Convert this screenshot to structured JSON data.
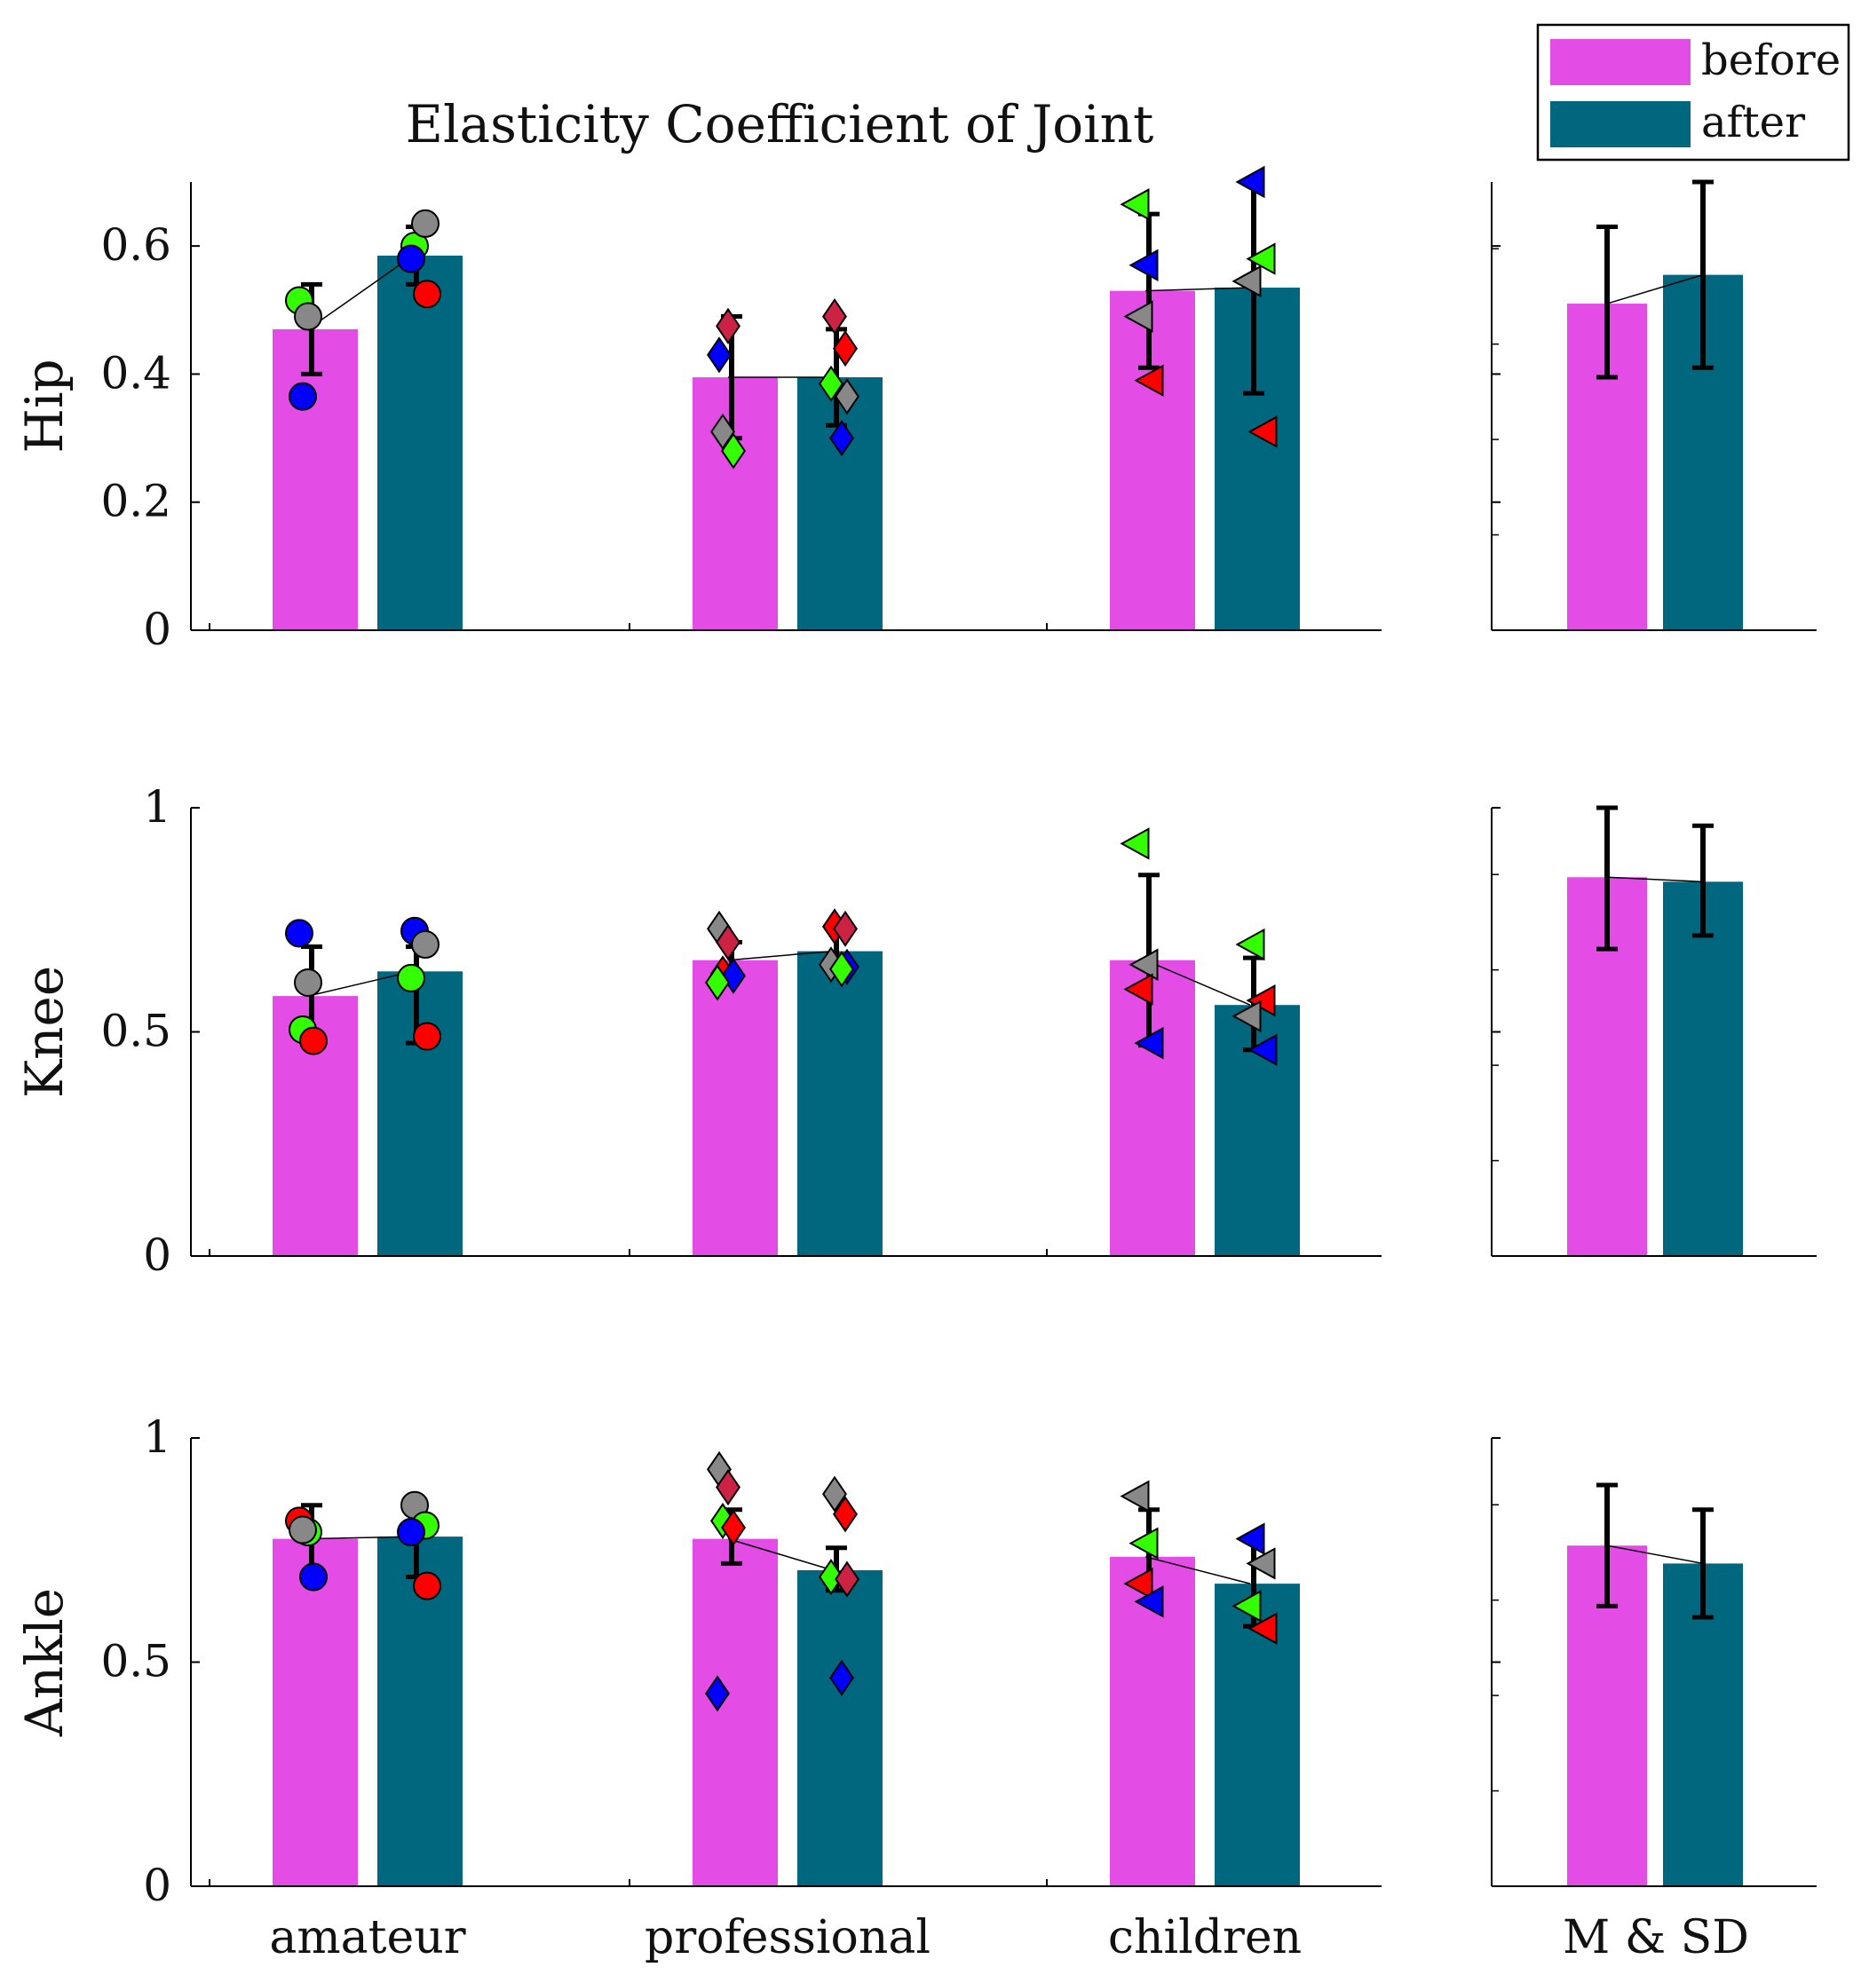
{
  "chart_data": {
    "type": "bar",
    "title": "Elasticity Coefficient of Joint",
    "legend": {
      "position": "top-right",
      "entries": [
        {
          "name": "before",
          "color": "#e44ce6"
        },
        {
          "name": "after",
          "color": "#00677e"
        }
      ]
    },
    "categories": [
      "amateur",
      "professional",
      "children"
    ],
    "summary_label": "M & SD",
    "marker_shapes": {
      "amateur": "circle",
      "professional": "diamond",
      "children": "triangle-left"
    },
    "subject_colors": [
      "#0000ff",
      "#ff0000",
      "#33ff00",
      "#888888",
      "#cc2244"
    ],
    "panels": [
      {
        "ylabel": "Hip",
        "ylim": [
          0,
          0.7
        ],
        "yticks": [
          0,
          0.2,
          0.4,
          0.6
        ],
        "yticklabels": [
          "0",
          "0.2",
          "0.4",
          "0.6"
        ],
        "groups": [
          {
            "before": {
              "mean": 0.47,
              "err_low": 0.4,
              "err_high": 0.54
            },
            "after": {
              "mean": 0.585,
              "err_low": 0.54,
              "err_high": 0.63
            },
            "points_before": [
              {
                "value": 0.515,
                "color": "#33ff00"
              },
              {
                "value": 0.49,
                "color": "#888888"
              },
              {
                "value": 0.365,
                "color": "#0000ff"
              }
            ],
            "points_after": [
              {
                "value": 0.6,
                "color": "#33ff00"
              },
              {
                "value": 0.635,
                "color": "#888888"
              },
              {
                "value": 0.58,
                "color": "#0000ff"
              },
              {
                "value": 0.525,
                "color": "#ff0000"
              }
            ]
          },
          {
            "before": {
              "mean": 0.395,
              "err_low": 0.3,
              "err_high": 0.49
            },
            "after": {
              "mean": 0.395,
              "err_low": 0.32,
              "err_high": 0.47
            },
            "points_before": [
              {
                "value": 0.43,
                "color": "#0000ff"
              },
              {
                "value": 0.475,
                "color": "#cc2244"
              },
              {
                "value": 0.31,
                "color": "#888888"
              },
              {
                "value": 0.28,
                "color": "#33ff00"
              }
            ],
            "points_after": [
              {
                "value": 0.49,
                "color": "#cc2244"
              },
              {
                "value": 0.44,
                "color": "#ff0000"
              },
              {
                "value": 0.385,
                "color": "#33ff00"
              },
              {
                "value": 0.365,
                "color": "#888888"
              },
              {
                "value": 0.3,
                "color": "#0000ff"
              }
            ]
          },
          {
            "before": {
              "mean": 0.53,
              "err_low": 0.41,
              "err_high": 0.65
            },
            "after": {
              "mean": 0.535,
              "err_low": 0.37,
              "err_high": 0.7
            },
            "points_before": [
              {
                "value": 0.665,
                "color": "#33ff00"
              },
              {
                "value": 0.57,
                "color": "#0000ff"
              },
              {
                "value": 0.49,
                "color": "#888888"
              },
              {
                "value": 0.39,
                "color": "#ff0000"
              }
            ],
            "points_after": [
              {
                "value": 0.7,
                "color": "#0000ff"
              },
              {
                "value": 0.58,
                "color": "#33ff00"
              },
              {
                "value": 0.545,
                "color": "#888888"
              },
              {
                "value": 0.31,
                "color": "#ff0000"
              }
            ]
          }
        ],
        "summary": {
          "before": {
            "mean": 0.51,
            "err_low": 0.395,
            "err_high": 0.63
          },
          "after": {
            "mean": 0.555,
            "err_low": 0.41,
            "err_high": 0.7
          }
        }
      },
      {
        "ylabel": "Knee",
        "ylim": [
          0,
          1
        ],
        "yticks": [
          0,
          0.5,
          1
        ],
        "yticklabels": [
          "0",
          "0.5",
          "1"
        ],
        "groups": [
          {
            "before": {
              "mean": 0.58,
              "err_low": 0.47,
              "err_high": 0.69
            },
            "after": {
              "mean": 0.635,
              "err_low": 0.475,
              "err_high": 0.69
            },
            "points_before": [
              {
                "value": 0.72,
                "color": "#0000ff"
              },
              {
                "value": 0.61,
                "color": "#888888"
              },
              {
                "value": 0.505,
                "color": "#33ff00"
              },
              {
                "value": 0.48,
                "color": "#ff0000"
              }
            ],
            "points_after": [
              {
                "value": 0.725,
                "color": "#0000ff"
              },
              {
                "value": 0.695,
                "color": "#888888"
              },
              {
                "value": 0.62,
                "color": "#33ff00"
              },
              {
                "value": 0.49,
                "color": "#ff0000"
              }
            ]
          },
          {
            "before": {
              "mean": 0.66,
              "err_low": 0.62,
              "err_high": 0.7
            },
            "after": {
              "mean": 0.68,
              "err_low": 0.64,
              "err_high": 0.73
            },
            "points_before": [
              {
                "value": 0.73,
                "color": "#888888"
              },
              {
                "value": 0.7,
                "color": "#cc2244"
              },
              {
                "value": 0.63,
                "color": "#ff0000"
              },
              {
                "value": 0.625,
                "color": "#0000ff"
              },
              {
                "value": 0.61,
                "color": "#33ff00"
              }
            ],
            "points_after": [
              {
                "value": 0.735,
                "color": "#ff0000"
              },
              {
                "value": 0.73,
                "color": "#cc2244"
              },
              {
                "value": 0.65,
                "color": "#888888"
              },
              {
                "value": 0.645,
                "color": "#0000ff"
              },
              {
                "value": 0.64,
                "color": "#33ff00"
              }
            ]
          },
          {
            "before": {
              "mean": 0.66,
              "err_low": 0.47,
              "err_high": 0.85
            },
            "after": {
              "mean": 0.56,
              "err_low": 0.46,
              "err_high": 0.665
            },
            "points_before": [
              {
                "value": 0.92,
                "color": "#33ff00"
              },
              {
                "value": 0.65,
                "color": "#888888"
              },
              {
                "value": 0.595,
                "color": "#ff0000"
              },
              {
                "value": 0.475,
                "color": "#0000ff"
              }
            ],
            "points_after": [
              {
                "value": 0.695,
                "color": "#33ff00"
              },
              {
                "value": 0.57,
                "color": "#ff0000"
              },
              {
                "value": 0.535,
                "color": "#888888"
              },
              {
                "value": 0.46,
                "color": "#0000ff"
              }
            ]
          }
        ],
        "summary": {
          "before": {
            "mean": 0.845,
            "err_low": 0.685,
            "err_high": 1.0
          },
          "after": {
            "mean": 0.835,
            "err_low": 0.715,
            "err_high": 0.96
          }
        }
      },
      {
        "ylabel": "Ankle",
        "ylim": [
          0,
          1
        ],
        "yticks": [
          0,
          0.5,
          1
        ],
        "yticklabels": [
          "0",
          "0.5",
          "1"
        ],
        "groups": [
          {
            "before": {
              "mean": 0.775,
              "err_low": 0.69,
              "err_high": 0.85
            },
            "after": {
              "mean": 0.78,
              "err_low": 0.69,
              "err_high": 0.855
            },
            "points_before": [
              {
                "value": 0.815,
                "color": "#ff0000"
              },
              {
                "value": 0.79,
                "color": "#33ff00"
              },
              {
                "value": 0.795,
                "color": "#888888"
              },
              {
                "value": 0.69,
                "color": "#0000ff"
              }
            ],
            "points_after": [
              {
                "value": 0.85,
                "color": "#888888"
              },
              {
                "value": 0.805,
                "color": "#33ff00"
              },
              {
                "value": 0.79,
                "color": "#0000ff"
              },
              {
                "value": 0.67,
                "color": "#ff0000"
              }
            ]
          },
          {
            "before": {
              "mean": 0.775,
              "err_low": 0.72,
              "err_high": 0.84
            },
            "after": {
              "mean": 0.705,
              "err_low": 0.66,
              "err_high": 0.755
            },
            "points_before": [
              {
                "value": 0.93,
                "color": "#888888"
              },
              {
                "value": 0.89,
                "color": "#cc2244"
              },
              {
                "value": 0.815,
                "color": "#33ff00"
              },
              {
                "value": 0.8,
                "color": "#ff0000"
              },
              {
                "value": 0.43,
                "color": "#0000ff"
              }
            ],
            "points_after": [
              {
                "value": 0.875,
                "color": "#888888"
              },
              {
                "value": 0.83,
                "color": "#ff0000"
              },
              {
                "value": 0.69,
                "color": "#33ff00"
              },
              {
                "value": 0.685,
                "color": "#cc2244"
              },
              {
                "value": 0.465,
                "color": "#0000ff"
              }
            ]
          },
          {
            "before": {
              "mean": 0.735,
              "err_low": 0.635,
              "err_high": 0.84
            },
            "after": {
              "mean": 0.675,
              "err_low": 0.58,
              "err_high": 0.77
            },
            "points_before": [
              {
                "value": 0.87,
                "color": "#888888"
              },
              {
                "value": 0.765,
                "color": "#33ff00"
              },
              {
                "value": 0.675,
                "color": "#ff0000"
              },
              {
                "value": 0.635,
                "color": "#0000ff"
              }
            ],
            "points_after": [
              {
                "value": 0.775,
                "color": "#0000ff"
              },
              {
                "value": 0.72,
                "color": "#888888"
              },
              {
                "value": 0.625,
                "color": "#33ff00"
              },
              {
                "value": 0.575,
                "color": "#ff0000"
              }
            ]
          }
        ],
        "summary": {
          "before": {
            "mean": 0.76,
            "err_low": 0.625,
            "err_high": 0.895
          },
          "after": {
            "mean": 0.72,
            "err_low": 0.6,
            "err_high": 0.84
          }
        }
      }
    ]
  }
}
